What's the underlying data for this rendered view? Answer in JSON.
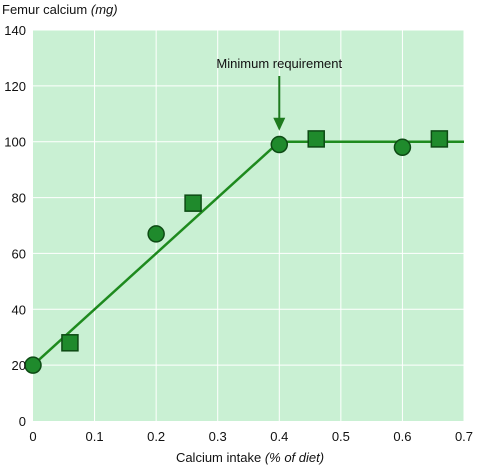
{
  "chart_data": {
    "type": "scatter",
    "title": "",
    "ylabel": {
      "main": "Femur calcium ",
      "unit": "(mg)"
    },
    "xlabel": {
      "main": "Calcium intake ",
      "unit": "(% of diet)"
    },
    "xlim": [
      0,
      0.7
    ],
    "ylim": [
      0,
      140
    ],
    "xticks": [
      0,
      0.1,
      0.2,
      0.3,
      0.4,
      0.5,
      0.6,
      0.7
    ],
    "xtick_labels": [
      "0",
      "0.1",
      "0.2",
      "0.3",
      "0.4",
      "0.5",
      "0.6",
      "0.7"
    ],
    "yticks": [
      0,
      20,
      40,
      60,
      80,
      100,
      120,
      140
    ],
    "ytick_labels": [
      "0",
      "20",
      "40",
      "60",
      "80",
      "100",
      "120",
      "140"
    ],
    "grid": true,
    "series": [
      {
        "marker": "circle",
        "x": [
          0.0,
          0.2,
          0.4,
          0.6
        ],
        "y": [
          20,
          67,
          99,
          98
        ]
      },
      {
        "marker": "square",
        "x": [
          0.06,
          0.26,
          0.46,
          0.66
        ],
        "y": [
          28,
          78,
          101,
          101
        ]
      }
    ],
    "fit_line": {
      "x": [
        0.0,
        0.4,
        0.7
      ],
      "y": [
        20,
        100,
        100
      ]
    },
    "annotation": {
      "text": "Minimum requirement",
      "x": 0.4,
      "y": 100
    },
    "colors": {
      "plot_bg": "#c9f0d3",
      "grid": "#ffffff",
      "line": "#1e8a1e",
      "marker": "#1f8a2c",
      "marker_edge": "#0d4a14",
      "annotation": "#1e7a1e"
    }
  }
}
